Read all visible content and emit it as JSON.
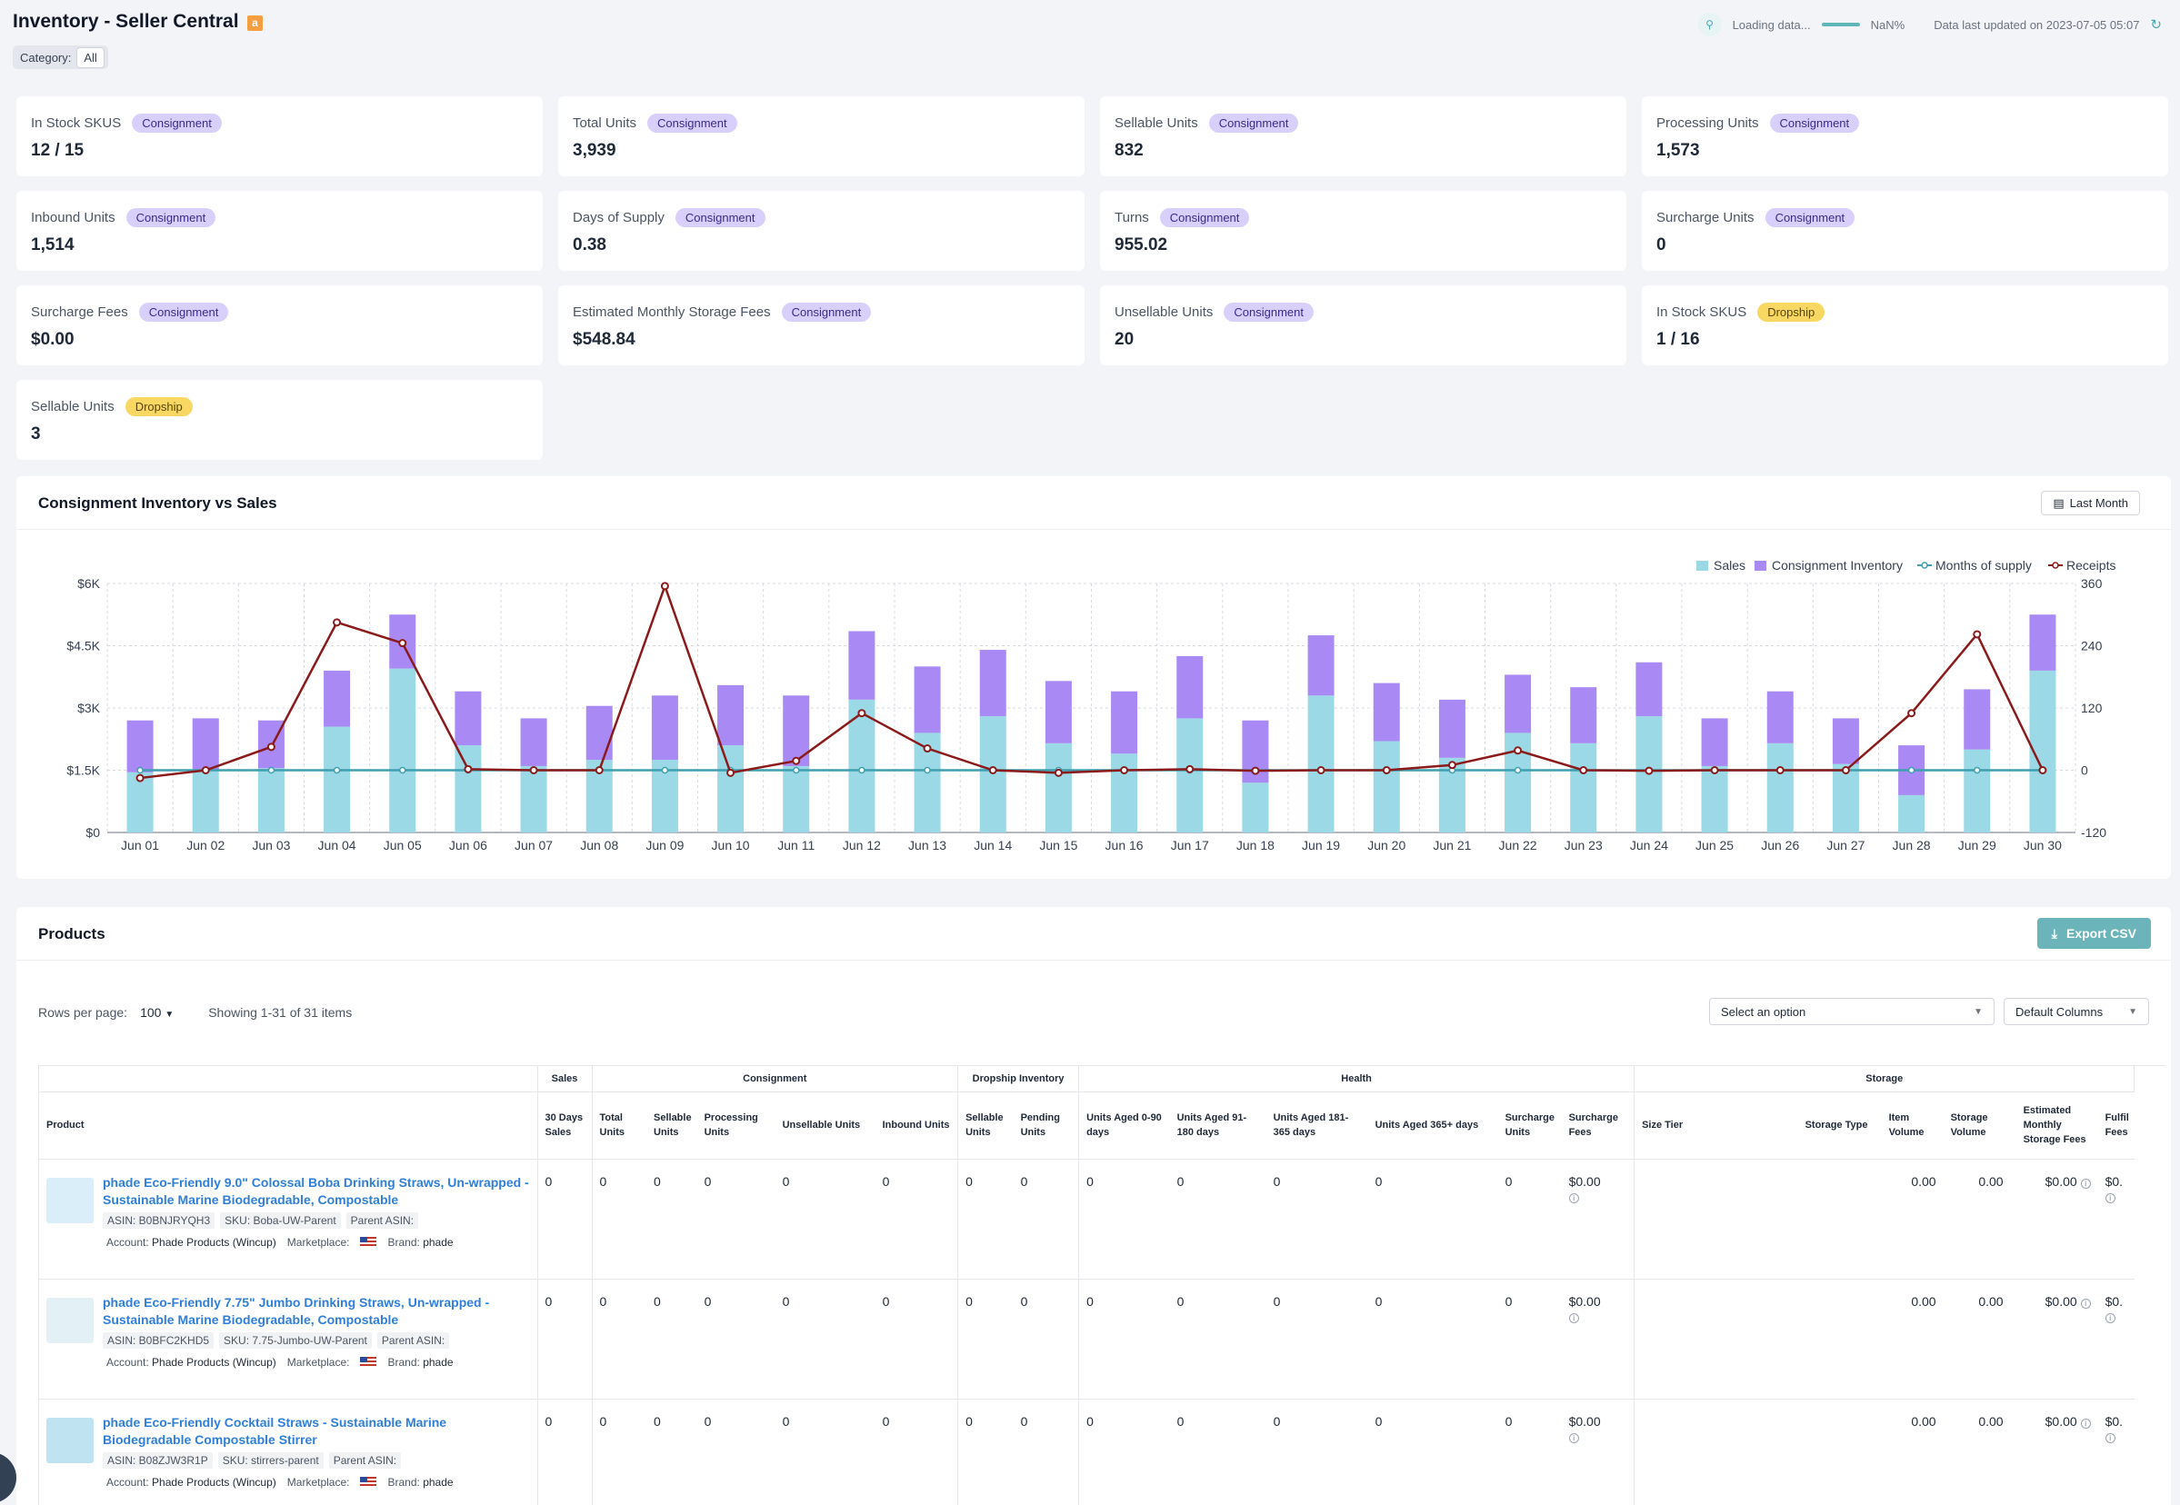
{
  "header": {
    "title": "Inventory - Seller Central",
    "amazon_badge": "a",
    "category_label": "Category:",
    "category_value": "All",
    "loading_text": "Loading data...",
    "loading_pct": "NaN%",
    "updated_text": "Data last updated on 2023-07-05 05:07"
  },
  "kpis": [
    {
      "label": "In Stock SKUS",
      "badge": "Consignment",
      "badge_type": "consign",
      "value": "12 / 15"
    },
    {
      "label": "Total Units",
      "badge": "Consignment",
      "badge_type": "consign",
      "value": "3,939"
    },
    {
      "label": "Sellable Units",
      "badge": "Consignment",
      "badge_type": "consign",
      "value": "832"
    },
    {
      "label": "Processing Units",
      "badge": "Consignment",
      "badge_type": "consign",
      "value": "1,573"
    },
    {
      "label": "Inbound Units",
      "badge": "Consignment",
      "badge_type": "consign",
      "value": "1,514"
    },
    {
      "label": "Days of Supply",
      "badge": "Consignment",
      "badge_type": "consign",
      "value": "0.38"
    },
    {
      "label": "Turns",
      "badge": "Consignment",
      "badge_type": "consign",
      "value": "955.02"
    },
    {
      "label": "Surcharge Units",
      "badge": "Consignment",
      "badge_type": "consign",
      "value": "0"
    },
    {
      "label": "Surcharge Fees",
      "badge": "Consignment",
      "badge_type": "consign",
      "value": "$0.00"
    },
    {
      "label": "Estimated Monthly Storage Fees",
      "badge": "Consignment",
      "badge_type": "consign",
      "value": "$548.84"
    },
    {
      "label": "Unsellable Units",
      "badge": "Consignment",
      "badge_type": "consign",
      "value": "20"
    },
    {
      "label": "In Stock SKUS",
      "badge": "Dropship",
      "badge_type": "drop",
      "value": "1 / 16"
    },
    {
      "label": "Sellable Units",
      "badge": "Dropship",
      "badge_type": "drop",
      "value": "3"
    }
  ],
  "chart": {
    "title": "Consignment Inventory vs Sales",
    "range_button": "Last Month"
  },
  "chart_data": {
    "type": "bar",
    "categories": [
      "Jun 01",
      "Jun 02",
      "Jun 03",
      "Jun 04",
      "Jun 05",
      "Jun 06",
      "Jun 07",
      "Jun 08",
      "Jun 09",
      "Jun 10",
      "Jun 11",
      "Jun 12",
      "Jun 13",
      "Jun 14",
      "Jun 15",
      "Jun 16",
      "Jun 17",
      "Jun 18",
      "Jun 19",
      "Jun 20",
      "Jun 21",
      "Jun 22",
      "Jun 23",
      "Jun 24",
      "Jun 25",
      "Jun 26",
      "Jun 27",
      "Jun 28",
      "Jun 29",
      "Jun 30"
    ],
    "legend": [
      "Sales",
      "Consignment Inventory",
      "Months of supply",
      "Receipts"
    ],
    "legend_position": "top-right",
    "stacked": true,
    "colors": {
      "sales": "#9ad9e5",
      "inventory": "#a989f3",
      "months_of_supply": "#3f9fb0",
      "receipts": "#8b1a1a"
    },
    "series": [
      {
        "name": "Sales",
        "axis": "left",
        "values": [
          1450,
          1500,
          1550,
          2550,
          3950,
          2100,
          1600,
          1750,
          1750,
          2100,
          1600,
          3200,
          2400,
          2800,
          2150,
          1900,
          2750,
          1200,
          3300,
          2200,
          1800,
          2400,
          2150,
          2800,
          1600,
          2150,
          1650,
          900,
          2000,
          3900
        ]
      },
      {
        "name": "Consignment Inventory",
        "axis": "left",
        "values": [
          1250,
          1250,
          1150,
          1350,
          1300,
          1300,
          1150,
          1300,
          1550,
          1450,
          1700,
          1650,
          1600,
          1600,
          1500,
          1500,
          1500,
          1500,
          1450,
          1400,
          1400,
          1400,
          1350,
          1300,
          1150,
          1250,
          1100,
          1200,
          1450,
          1350
        ]
      },
      {
        "name": "Months of supply",
        "axis": "right",
        "values": [
          0,
          0,
          0,
          0,
          0,
          0,
          0,
          0,
          0,
          0,
          0,
          0,
          0,
          0,
          0,
          0,
          0,
          0,
          0,
          0,
          0,
          0,
          0,
          0,
          0,
          0,
          0,
          0,
          0,
          0
        ]
      },
      {
        "name": "Receipts",
        "axis": "right",
        "values": [
          -15,
          0,
          45,
          285,
          245,
          2,
          0,
          0,
          355,
          -5,
          18,
          110,
          42,
          0,
          -5,
          0,
          2,
          -1,
          0,
          0,
          10,
          38,
          0,
          -1,
          0,
          0,
          0,
          110,
          262,
          0
        ]
      }
    ],
    "ylim": [
      0,
      6000
    ],
    "y_ticks": [
      "$0",
      "$1.5K",
      "$3K",
      "$4.5K",
      "$6K"
    ],
    "y2lim": [
      -120,
      360
    ],
    "y2_ticks": [
      "-120",
      "0",
      "120",
      "240",
      "360"
    ],
    "grid": true
  },
  "products": {
    "title": "Products",
    "export_label": "Export CSV",
    "rows_per_page_label": "Rows per page:",
    "rows_per_page_value": "100",
    "showing_text": "Showing 1-31 of 31 items",
    "select_placeholder": "Select an option",
    "columns_label": "Default Columns",
    "groups": [
      "Sales",
      "Consignment",
      "Dropship Inventory",
      "Health",
      "Storage"
    ],
    "headers": {
      "product": "Product",
      "sales30": "30 Days Sales",
      "total_units": "Total Units",
      "sellable_units": "Sellable Units",
      "processing_units": "Processing Units",
      "unsellable_units": "Unsellable Units",
      "inbound_units": "Inbound Units",
      "ds_sellable": "Sellable Units",
      "ds_pending": "Pending Units",
      "aged_0_90": "Units Aged 0-90 days",
      "aged_91_180": "Units Aged 91-180 days",
      "aged_181_365": "Units Aged 181-365 days",
      "aged_365": "Units Aged 365+ days",
      "surcharge_units": "Surcharge Units",
      "surcharge_fees": "Surcharge Fees",
      "size_tier": "Size Tier",
      "storage_type": "Storage Type",
      "item_volume": "Item Volume",
      "storage_volume": "Storage Volume",
      "est_storage_fees": "Estimated Monthly Storage Fees",
      "fulfil_fees": "Fulfil Fees"
    },
    "rows": [
      {
        "name": "phade Eco-Friendly 9.0\" Colossal Boba Drinking Straws, Un-wrapped - Sustainable Marine Biodegradable, Compostable",
        "asin": "ASIN: B0BNJRYQH3",
        "sku": "SKU: Boba-UW-Parent",
        "parent": "Parent ASIN:",
        "account_label": "Account:",
        "account": "Phade Products (Wincup)",
        "marketplace_label": "Marketplace:",
        "brand_label": "Brand:",
        "brand": "phade",
        "sales30": "0",
        "total": "0",
        "sellable": "0",
        "processing": "0",
        "unsellable": "0",
        "inbound": "0",
        "ds_sellable": "0",
        "ds_pending": "0",
        "a1": "0",
        "a2": "0",
        "a3": "0",
        "a4": "0",
        "s_units": "0",
        "s_fees": "$0.00",
        "size_tier": "",
        "storage_type": "",
        "item_vol": "0.00",
        "storage_vol": "0.00",
        "est_fees": "$0.00",
        "fulfil": "$0."
      },
      {
        "name": "phade Eco-Friendly 7.75\" Jumbo Drinking Straws, Un-wrapped - Sustainable Marine Biodegradable, Compostable",
        "asin": "ASIN: B0BFC2KHD5",
        "sku": "SKU: 7.75-Jumbo-UW-Parent",
        "parent": "Parent ASIN:",
        "account_label": "Account:",
        "account": "Phade Products (Wincup)",
        "marketplace_label": "Marketplace:",
        "brand_label": "Brand:",
        "brand": "phade",
        "sales30": "0",
        "total": "0",
        "sellable": "0",
        "processing": "0",
        "unsellable": "0",
        "inbound": "0",
        "ds_sellable": "0",
        "ds_pending": "0",
        "a1": "0",
        "a2": "0",
        "a3": "0",
        "a4": "0",
        "s_units": "0",
        "s_fees": "$0.00",
        "size_tier": "",
        "storage_type": "",
        "item_vol": "0.00",
        "storage_vol": "0.00",
        "est_fees": "$0.00",
        "fulfil": "$0."
      },
      {
        "name": "phade Eco-Friendly Cocktail Straws - Sustainable Marine Biodegradable Compostable Stirrer",
        "asin": "ASIN: B08ZJW3R1P",
        "sku": "SKU: stirrers-parent",
        "parent": "Parent ASIN:",
        "account_label": "Account:",
        "account": "Phade Products (Wincup)",
        "marketplace_label": "Marketplace:",
        "brand_label": "Brand:",
        "brand": "phade",
        "sales30": "0",
        "total": "0",
        "sellable": "0",
        "processing": "0",
        "unsellable": "0",
        "inbound": "0",
        "ds_sellable": "0",
        "ds_pending": "0",
        "a1": "0",
        "a2": "0",
        "a3": "0",
        "a4": "0",
        "s_units": "0",
        "s_fees": "$0.00",
        "size_tier": "",
        "storage_type": "",
        "item_vol": "0.00",
        "storage_vol": "0.00",
        "est_fees": "$0.00",
        "fulfil": "$0."
      }
    ]
  }
}
